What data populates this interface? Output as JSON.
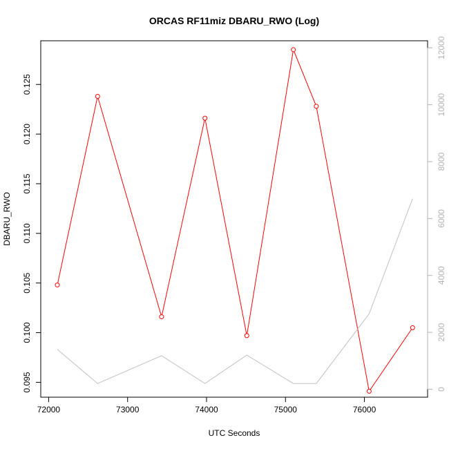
{
  "chart_data": {
    "type": "line",
    "title": "ORCAS RF11miz DBARU_RWO (Log)",
    "xlabel": "UTC Seconds",
    "ylabel": "DBARU_RWO",
    "xlim": [
      71900,
      76800
    ],
    "ylim": [
      0.0935,
      0.1294
    ],
    "y2lim": [
      -280,
      12250
    ],
    "x_ticks": [
      72000,
      73000,
      74000,
      75000,
      76000
    ],
    "y_ticks": [
      0.095,
      0.1,
      0.105,
      0.11,
      0.115,
      0.12,
      0.125
    ],
    "y_tick_labels": [
      "0.095",
      "0.100",
      "0.105",
      "0.110",
      "0.115",
      "0.120",
      "0.125"
    ],
    "y2_ticks": [
      0,
      2000,
      4000,
      6000,
      8000,
      10000,
      12000
    ],
    "grid": false,
    "series": [
      {
        "axis": "left",
        "color": "#ff0000",
        "marker": "open-circle",
        "x": [
          72110,
          72620,
          73430,
          73980,
          74510,
          75100,
          75390,
          76060,
          76610
        ],
        "y": [
          0.1048,
          0.1238,
          0.1016,
          0.1216,
          0.0997,
          0.1285,
          0.1228,
          0.0941,
          0.1005
        ]
      },
      {
        "axis": "right",
        "color": "#c0c0c0",
        "marker": "none",
        "x": [
          72110,
          72620,
          73430,
          73980,
          74510,
          75100,
          75390,
          76060,
          76610
        ],
        "y": [
          1400,
          200,
          1180,
          200,
          1200,
          200,
          200,
          2650,
          6700
        ]
      }
    ]
  }
}
